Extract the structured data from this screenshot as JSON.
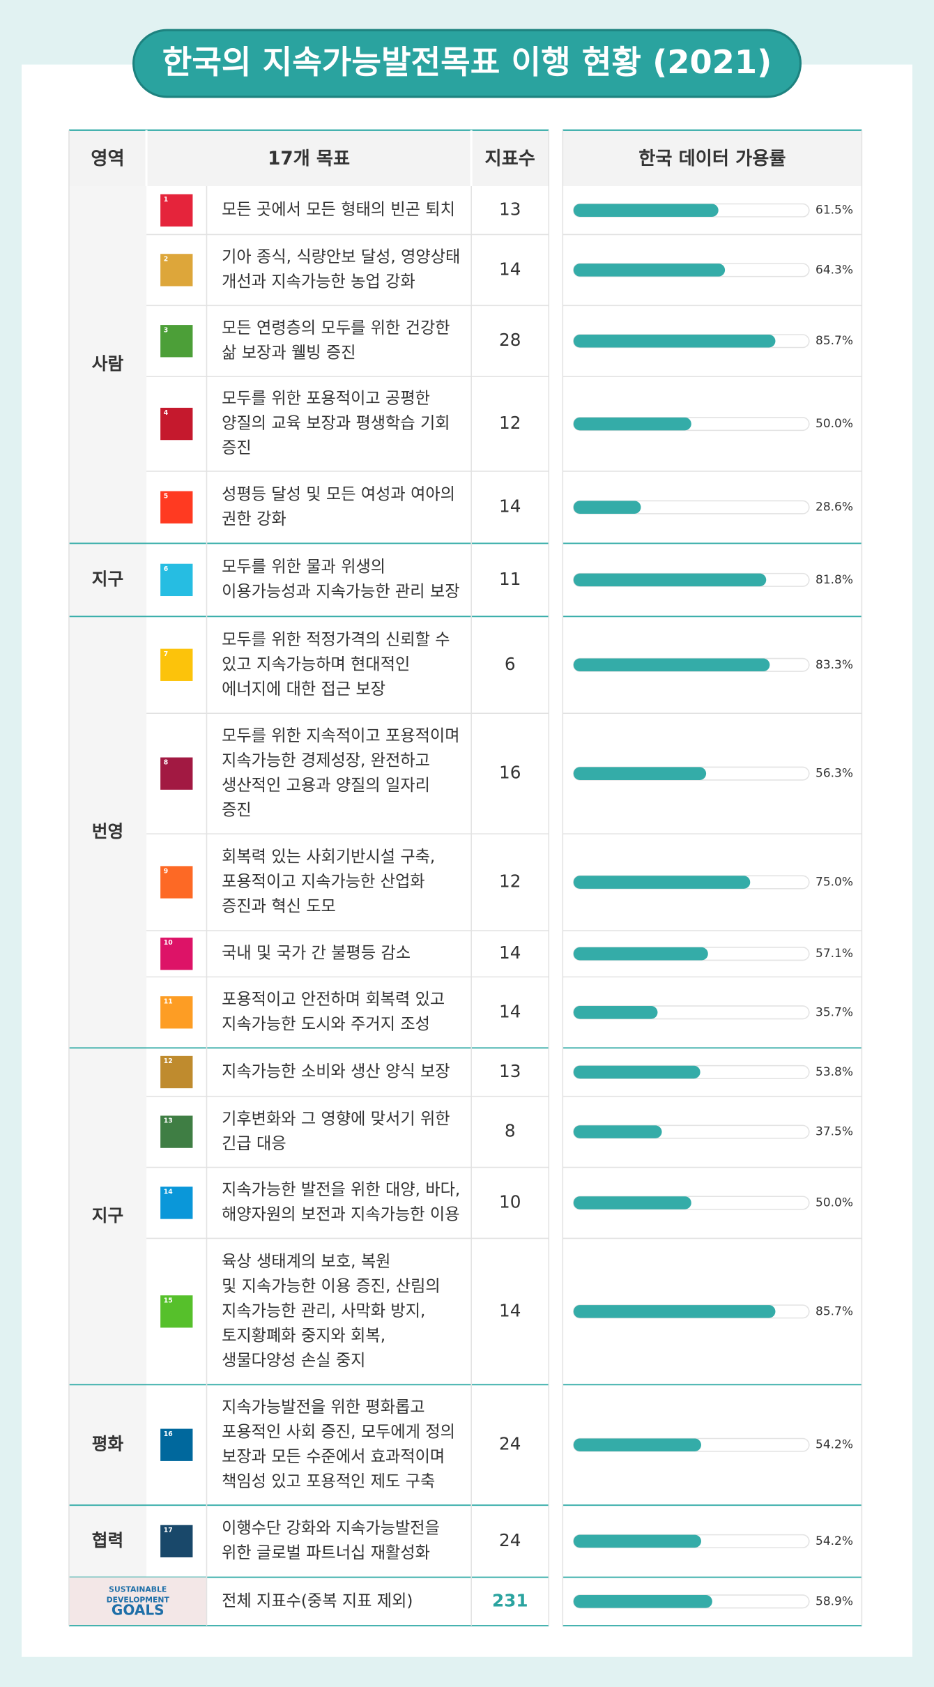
{
  "title": "한국의 지속가능발전목표 이행 현황 (2021)",
  "header": [
    "영역",
    "17개 목표",
    "지표수",
    "한국 데이터 가용률"
  ],
  "areas": [
    {
      "name": "사람",
      "rows": [
        {
          "sdg": 1,
          "goal": [
            "모든 곳에서 모든 형태의 빈곤 퇴치"
          ],
          "count": 13,
          "rate": 61.5,
          "rate_label": "61.5%"
        },
        {
          "sdg": 2,
          "goal": [
            "기아 종식, 식량안보 달성, 영양상태",
            "개선과 지속가능한 농업 강화"
          ],
          "count": 14,
          "rate": 64.3,
          "rate_label": "64.3%"
        },
        {
          "sdg": 3,
          "goal": [
            "모든 연령층의 모두를 위한 건강한",
            "삶 보장과 웰빙 증진"
          ],
          "count": 28,
          "rate": 85.7,
          "rate_label": "85.7%"
        },
        {
          "sdg": 4,
          "goal": [
            "모두를 위한 포용적이고 공평한",
            "양질의 교육 보장과 평생학습 기회",
            "증진"
          ],
          "count": 12,
          "rate": 50.0,
          "rate_label": "50.0%"
        },
        {
          "sdg": 5,
          "goal": [
            "성평등 달성 및 모든 여성과 여아의",
            "권한 강화"
          ],
          "count": 14,
          "rate": 28.6,
          "rate_label": "28.6%"
        }
      ]
    },
    {
      "name": "지구",
      "rows": [
        {
          "sdg": 6,
          "goal": [
            "모두를 위한 물과 위생의",
            "이용가능성과 지속가능한 관리 보장"
          ],
          "count": 11,
          "rate": 81.8,
          "rate_label": "81.8%"
        }
      ]
    },
    {
      "name": "번영",
      "rows": [
        {
          "sdg": 7,
          "goal": [
            "모두를 위한 적정가격의 신뢰할 수",
            "있고 지속가능하며 현대적인",
            "에너지에 대한 접근 보장"
          ],
          "count": 6,
          "rate": 83.3,
          "rate_label": "83.3%"
        },
        {
          "sdg": 8,
          "goal": [
            "모두를 위한 지속적이고 포용적이며",
            "지속가능한 경제성장, 완전하고",
            "생산적인 고용과 양질의 일자리",
            "증진"
          ],
          "count": 16,
          "rate": 56.3,
          "rate_label": "56.3%"
        },
        {
          "sdg": 9,
          "goal": [
            "회복력 있는 사회기반시설 구축,",
            "포용적이고 지속가능한 산업화",
            "증진과 혁신 도모"
          ],
          "count": 12,
          "rate": 75.0,
          "rate_label": "75.0%"
        },
        {
          "sdg": 10,
          "goal": [
            "국내 및 국가 간 불평등 감소"
          ],
          "count": 14,
          "rate": 57.1,
          "rate_label": "57.1%"
        },
        {
          "sdg": 11,
          "goal": [
            "포용적이고 안전하며 회복력 있고",
            "지속가능한 도시와 주거지 조성"
          ],
          "count": 14,
          "rate": 35.7,
          "rate_label": "35.7%"
        }
      ]
    },
    {
      "name": "지구",
      "rows": [
        {
          "sdg": 12,
          "goal": [
            "지속가능한 소비와 생산 양식 보장"
          ],
          "count": 13,
          "rate": 53.8,
          "rate_label": "53.8%"
        },
        {
          "sdg": 13,
          "goal": [
            "기후변화와 그 영향에 맞서기 위한",
            "긴급 대응"
          ],
          "count": 8,
          "rate": 37.5,
          "rate_label": "37.5%"
        },
        {
          "sdg": 14,
          "goal": [
            "지속가능한 발전을 위한 대양, 바다,",
            "해양자원의 보전과 지속가능한 이용"
          ],
          "count": 10,
          "rate": 50.0,
          "rate_label": "50.0%"
        },
        {
          "sdg": 15,
          "goal": [
            "육상 생태계의 보호, 복원",
            "및 지속가능한 이용 증진, 산림의",
            "지속가능한 관리, 사막화 방지,",
            "토지황폐화 중지와 회복,",
            "생물다양성 손실 중지"
          ],
          "count": 14,
          "rate": 85.7,
          "rate_label": "85.7%"
        }
      ]
    },
    {
      "name": "평화",
      "rows": [
        {
          "sdg": 16,
          "goal": [
            "지속가능발전을 위한 평화롭고",
            "포용적인 사회 증진, 모두에게 정의",
            "보장과 모든 수준에서 효과적이며",
            "책임성 있고 포용적인 제도 구축"
          ],
          "count": 24,
          "rate": 54.2,
          "rate_label": "54.2%"
        }
      ]
    },
    {
      "name": "협력",
      "rows": [
        {
          "sdg": 17,
          "goal": [
            "이행수단 강화와 지속가능발전을",
            "위한 글로벌 파트너십 재활성화"
          ],
          "count": 24,
          "rate": 54.2,
          "rate_label": "54.2%"
        }
      ]
    }
  ],
  "total": {
    "logo": [
      "SUSTAINABLE",
      "DEVELOPMENT",
      "GOALS"
    ],
    "label": "전체 지표수(중복 지표 제외)",
    "count": 231,
    "rate": 58.9,
    "rate_label": "58.9%"
  }
}
